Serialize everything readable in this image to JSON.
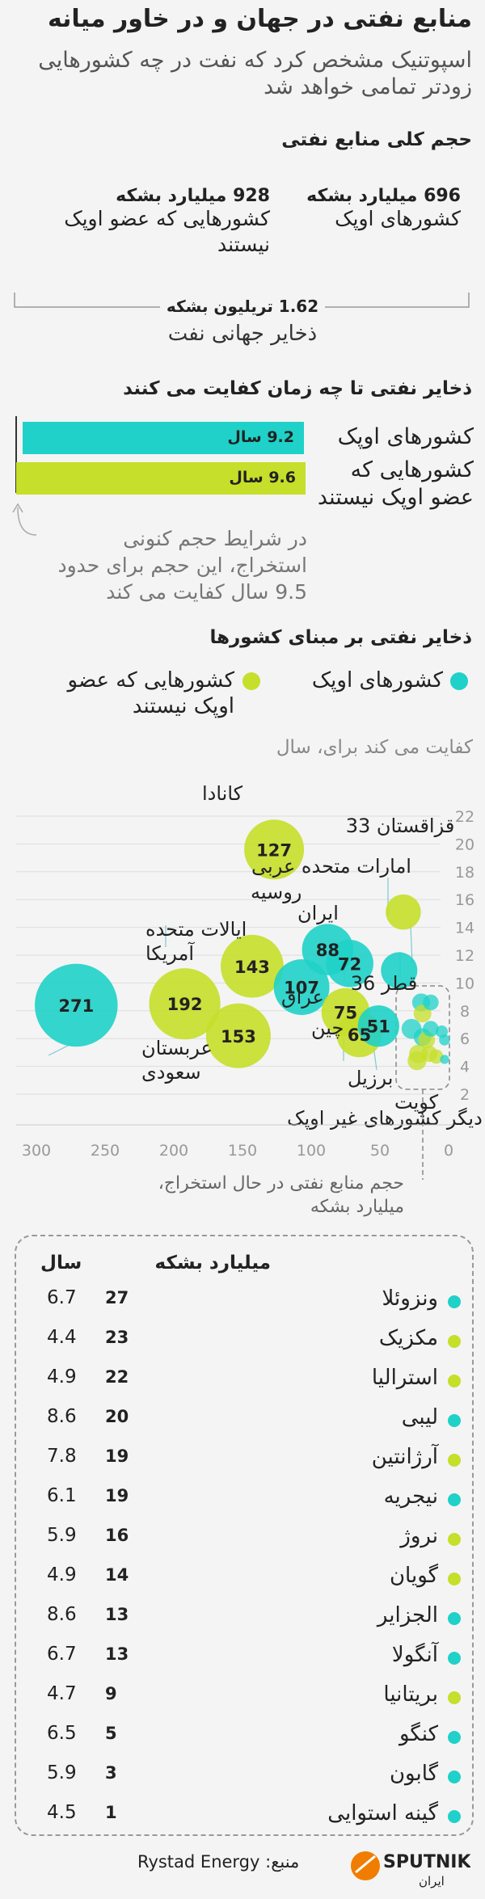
{
  "title": "منابع نفتی در جهان و در خاور میانه",
  "subtitle": "اسپوتنیک مشخص کرد که نفت در چه کشورهایی زودتر تمامی خواهد شد",
  "colors": {
    "opec": "#1fd1c8",
    "non_opec": "#c5df2a",
    "bg": "#f4f4f4"
  },
  "section1": {
    "heading": "حجم کلی منابع نفتی",
    "opec_value": "696 میلیارد بشکه",
    "opec_label": "کشورهای اوپک",
    "nonopec_value": "928 میلیارد بشکه",
    "nonopec_label": "کشورهایی که عضو اوپک نیستند",
    "total_value": "1.62 تریلیون بشکه",
    "total_label": "ذخایر جهانی نفت"
  },
  "section2": {
    "heading": "ذخایر نفتی تا چه زمان کفایت می کنند",
    "opec_bar": "9.2 سال",
    "opec_label": "کشورهای اوپک",
    "nonopec_bar": "9.6 سال",
    "nonopec_label": "کشورهایی که عضو اوپک نیستند",
    "note": "در شرایط حجم کنونی استخراج، این حجم برای حدود 9.5 سال کفایت می کند"
  },
  "section3": {
    "heading": "ذخایر نفتی بر مبنای کشورها",
    "legend_opec": "کشورهای اوپک",
    "legend_nonopec": "کشورهایی که عضو اوپک نیستند",
    "ylabel": "کفایت می کند برای، سال",
    "xlabel": "حجم منابع نفتی در حال استخراج، میلیارد بشکه"
  },
  "chart_data": {
    "type": "scatter",
    "title": "ذخایر نفتی بر مبنای کشورها",
    "xlabel": "حجم منابع نفتی در حال استخراج، میلیارد بشکه",
    "ylabel": "کفایت می کند برای، سال",
    "xlim": [
      300,
      0
    ],
    "ylim": [
      1,
      22
    ],
    "x_ticks": [
      "300",
      "250",
      "200",
      "150",
      "100",
      "50",
      "0"
    ],
    "y_ticks": [
      "2",
      "4",
      "6",
      "8",
      "10",
      "12",
      "14",
      "16",
      "18",
      "20",
      "22"
    ],
    "points": [
      {
        "name": "کانادا",
        "value": "127",
        "x": 127,
        "y": 19.6,
        "group": "non_opec"
      },
      {
        "name": "قزاقستان 33",
        "value": "",
        "x": 33,
        "y": 15.1,
        "group": "non_opec"
      },
      {
        "name": "امارات متحده عربی",
        "value": "72",
        "x": 72,
        "y": 11.4,
        "group": "opec"
      },
      {
        "name": "روسیه",
        "value": "",
        "x": 0,
        "y": 0,
        "group": "non_opec"
      },
      {
        "name": "ایران",
        "value": "88",
        "x": 88,
        "y": 12.4,
        "group": "opec"
      },
      {
        "name": "ایالات متحده آمریکا",
        "value": "192",
        "x": 192,
        "y": 8.5,
        "group": "non_opec"
      },
      {
        "name": "",
        "value": "143",
        "x": 143,
        "y": 11.2,
        "group": "non_opec"
      },
      {
        "name": "عراق",
        "value": "107",
        "x": 107,
        "y": 9.7,
        "group": "opec"
      },
      {
        "name": "قطر 36",
        "value": "",
        "x": 36,
        "y": 10.9,
        "group": "opec"
      },
      {
        "name": "عربستان سعودی",
        "value": "271",
        "x": 271,
        "y": 8.4,
        "group": "opec"
      },
      {
        "name": "چین",
        "value": "75",
        "x": 75,
        "y": 7.9,
        "group": "non_opec"
      },
      {
        "name": "دیگر کشورهای غیر اوپک",
        "value": "153",
        "x": 153,
        "y": 6.2,
        "group": "non_opec"
      },
      {
        "name": "برزیل",
        "value": "65",
        "x": 65,
        "y": 6.3,
        "group": "non_opec"
      },
      {
        "name": "کویت",
        "value": "51",
        "x": 51,
        "y": 6.9,
        "group": "opec"
      }
    ]
  },
  "table": {
    "col_bbl": "میلیارد بشکه",
    "col_years": "سال",
    "rows": [
      {
        "country": "ونزوئلا",
        "bbl": "27",
        "years": "6.7",
        "group": "opec"
      },
      {
        "country": "مکزیک",
        "bbl": "23",
        "years": "4.4",
        "group": "non_opec"
      },
      {
        "country": "استرالیا",
        "bbl": "22",
        "years": "4.9",
        "group": "non_opec"
      },
      {
        "country": "لیبی",
        "bbl": "20",
        "years": "8.6",
        "group": "opec"
      },
      {
        "country": "آرژانتین",
        "bbl": "19",
        "years": "7.8",
        "group": "non_opec"
      },
      {
        "country": "نیجریه",
        "bbl": "19",
        "years": "6.1",
        "group": "opec"
      },
      {
        "country": "نروژ",
        "bbl": "16",
        "years": "5.9",
        "group": "non_opec"
      },
      {
        "country": "گویان",
        "bbl": "14",
        "years": "4.9",
        "group": "non_opec"
      },
      {
        "country": "الجزایر",
        "bbl": "13",
        "years": "8.6",
        "group": "opec"
      },
      {
        "country": "آنگولا",
        "bbl": "13",
        "years": "6.7",
        "group": "opec"
      },
      {
        "country": "بریتانیا",
        "bbl": "9",
        "years": "4.7",
        "group": "non_opec"
      },
      {
        "country": "کنگو",
        "bbl": "5",
        "years": "6.5",
        "group": "opec"
      },
      {
        "country": "گابون",
        "bbl": "3",
        "years": "5.9",
        "group": "opec"
      },
      {
        "country": "گینه استوایی",
        "bbl": "1",
        "years": "4.5",
        "group": "opec"
      }
    ]
  },
  "footer": {
    "source": "منبع: Rystad Energy",
    "logo_text": "SPUTNIK",
    "logo_sub": "ایران"
  }
}
